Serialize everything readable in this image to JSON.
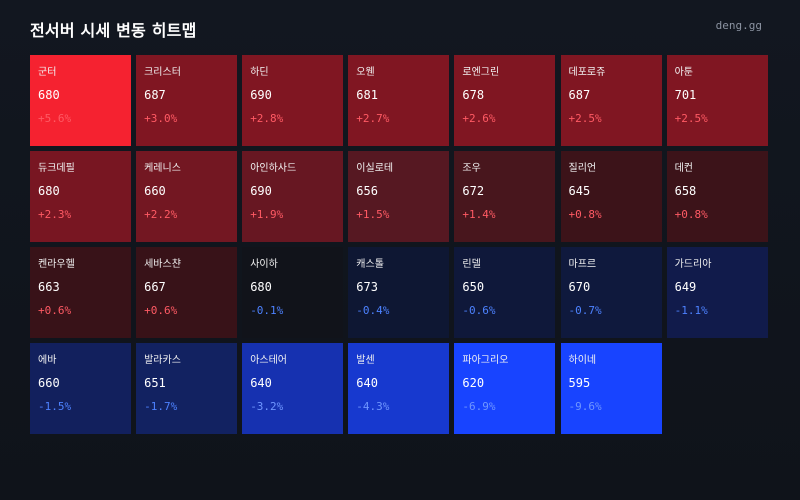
{
  "header": {
    "title": "전서버 시세 변동 히트맵",
    "brand": "deng.gg"
  },
  "colors": {
    "positive_text": "#ff5a64",
    "negative_text": "#4d82ff",
    "negative_text_strong": "#6f96ff"
  },
  "chart_data": {
    "type": "heatmap",
    "columns": 7,
    "cells": [
      {
        "name": "군터",
        "value": 680,
        "change": "+5.6%",
        "change_pct": 5.6
      },
      {
        "name": "크리스터",
        "value": 687,
        "change": "+3.0%",
        "change_pct": 3.0
      },
      {
        "name": "하딘",
        "value": 690,
        "change": "+2.8%",
        "change_pct": 2.8
      },
      {
        "name": "오웬",
        "value": 681,
        "change": "+2.7%",
        "change_pct": 2.7
      },
      {
        "name": "로엔그린",
        "value": 678,
        "change": "+2.6%",
        "change_pct": 2.6
      },
      {
        "name": "데포로쥬",
        "value": 687,
        "change": "+2.5%",
        "change_pct": 2.5
      },
      {
        "name": "아툰",
        "value": 701,
        "change": "+2.5%",
        "change_pct": 2.5
      },
      {
        "name": "듀크데필",
        "value": 680,
        "change": "+2.3%",
        "change_pct": 2.3
      },
      {
        "name": "케레니스",
        "value": 660,
        "change": "+2.2%",
        "change_pct": 2.2
      },
      {
        "name": "아인하사드",
        "value": 690,
        "change": "+1.9%",
        "change_pct": 1.9
      },
      {
        "name": "이실로테",
        "value": 656,
        "change": "+1.5%",
        "change_pct": 1.5
      },
      {
        "name": "조우",
        "value": 672,
        "change": "+1.4%",
        "change_pct": 1.4
      },
      {
        "name": "질리언",
        "value": 645,
        "change": "+0.8%",
        "change_pct": 0.8
      },
      {
        "name": "데컨",
        "value": 658,
        "change": "+0.8%",
        "change_pct": 0.8
      },
      {
        "name": "켄라우헬",
        "value": 663,
        "change": "+0.6%",
        "change_pct": 0.6
      },
      {
        "name": "세바스챤",
        "value": 667,
        "change": "+0.6%",
        "change_pct": 0.6
      },
      {
        "name": "사이하",
        "value": 680,
        "change": "-0.1%",
        "change_pct": -0.1
      },
      {
        "name": "캐스톨",
        "value": 673,
        "change": "-0.4%",
        "change_pct": -0.4
      },
      {
        "name": "린델",
        "value": 650,
        "change": "-0.6%",
        "change_pct": -0.6
      },
      {
        "name": "마프르",
        "value": 670,
        "change": "-0.7%",
        "change_pct": -0.7
      },
      {
        "name": "가드리아",
        "value": 649,
        "change": "-1.1%",
        "change_pct": -1.1
      },
      {
        "name": "에바",
        "value": 660,
        "change": "-1.5%",
        "change_pct": -1.5
      },
      {
        "name": "발라카스",
        "value": 651,
        "change": "-1.7%",
        "change_pct": -1.7
      },
      {
        "name": "아스테어",
        "value": 640,
        "change": "-3.2%",
        "change_pct": -3.2
      },
      {
        "name": "발센",
        "value": 640,
        "change": "-4.3%",
        "change_pct": -4.3
      },
      {
        "name": "파아그리오",
        "value": 620,
        "change": "-6.9%",
        "change_pct": -6.9
      },
      {
        "name": "하이네",
        "value": 595,
        "change": "-9.6%",
        "change_pct": -9.6
      }
    ]
  }
}
